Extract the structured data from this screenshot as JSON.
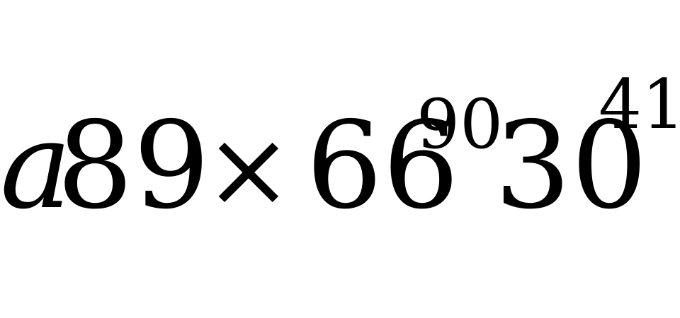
{
  "expression": {
    "variable": "a",
    "coefficient": "89",
    "operator": "×",
    "base_1": "66",
    "exponent_1": "90",
    "base_2": "30",
    "exponent_2": "41"
  },
  "colors": {
    "background": "#ffffff",
    "text": "#000000"
  }
}
